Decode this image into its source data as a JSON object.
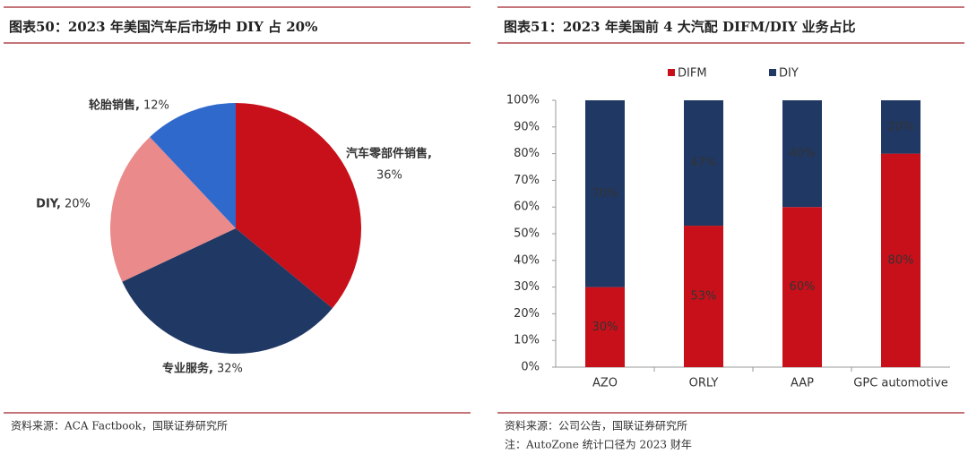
{
  "chart_data": [
    {
      "type": "pie",
      "title": "图表50：2023 年美国汽车后市场中 DIY 占 20%",
      "categories": [
        "汽车零部件销售,",
        "专业服务,",
        "DIY,",
        "轮胎销售,"
      ],
      "values": [
        36,
        32,
        20,
        12
      ],
      "value_labels": [
        "36%",
        "32%",
        "20%",
        "12%"
      ],
      "colors": [
        "#c8101a",
        "#203864",
        "#ea8a8a",
        "#2f69cc"
      ]
    },
    {
      "type": "stacked_bar",
      "title": "图表51：2023 年美国前 4 大汽配 DIFM/DIY 业务占比",
      "categories": [
        "AZO",
        "ORLY",
        "AAP",
        "GPC automotive"
      ],
      "series": [
        {
          "name": "DIFM",
          "color": "#c8101a",
          "values": [
            30,
            53,
            60,
            80
          ],
          "value_labels": [
            "30%",
            "53%",
            "60%",
            "80%"
          ]
        },
        {
          "name": "DIY",
          "color": "#203864",
          "values": [
            70,
            47,
            40,
            20
          ],
          "value_labels": [
            "70%",
            "47%",
            "40%",
            "20%"
          ]
        }
      ],
      "ylim": [
        0,
        100
      ],
      "yticks": [
        {
          "value": 0,
          "label": "0%"
        },
        {
          "value": 10,
          "label": "10%"
        },
        {
          "value": 20,
          "label": "20%"
        },
        {
          "value": 30,
          "label": "30%"
        },
        {
          "value": 40,
          "label": "40%"
        },
        {
          "value": 50,
          "label": "50%"
        },
        {
          "value": 60,
          "label": "60%"
        },
        {
          "value": 70,
          "label": "70%"
        },
        {
          "value": 80,
          "label": "80%"
        },
        {
          "value": 90,
          "label": "90%"
        },
        {
          "value": 100,
          "label": "100%"
        }
      ],
      "legend": "top"
    }
  ],
  "sources": [
    "资料来源：ACA Factbook，国联证券研究所",
    "资料来源：公司公告，国联证券研究所",
    "注：AutoZone 统计口径为 2023 财年"
  ]
}
